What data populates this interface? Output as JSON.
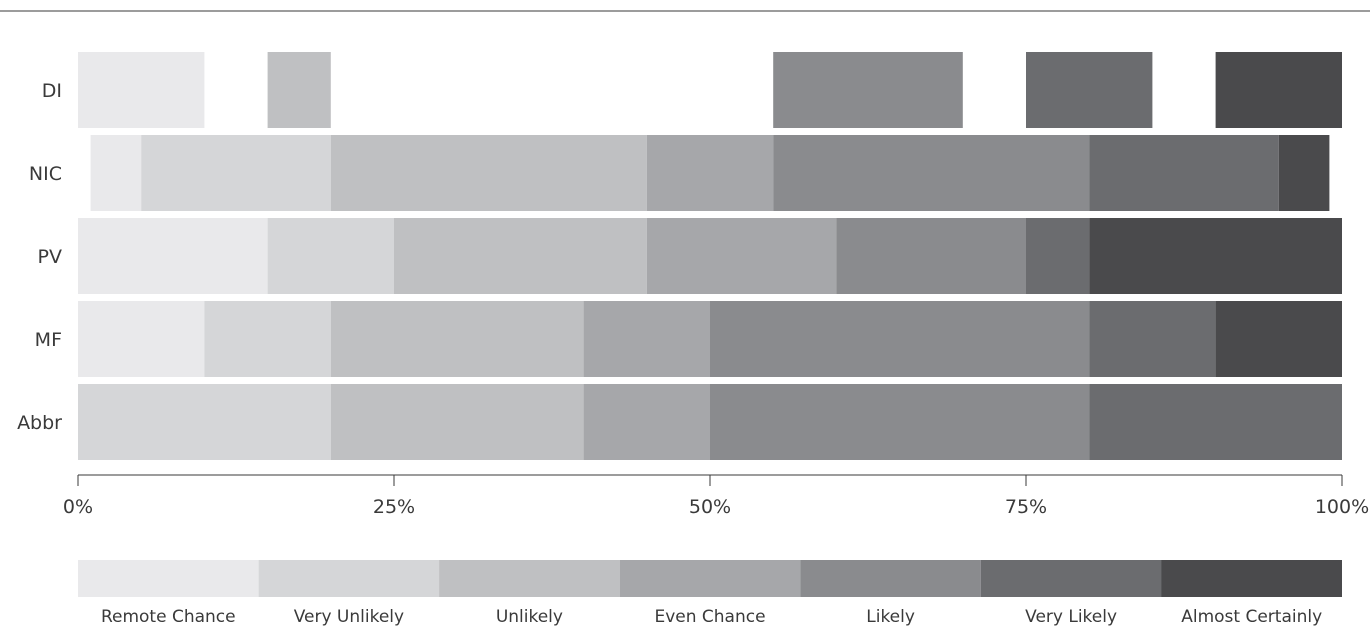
{
  "chart_data": {
    "type": "bar",
    "orientation": "horizontal",
    "stacked": "ranges",
    "title": "",
    "xlabel": "",
    "ylabel": "",
    "xlim": [
      0,
      100
    ],
    "x_ticks": [
      "0%",
      "25%",
      "50%",
      "75%",
      "100%"
    ],
    "x_tick_values": [
      0,
      25,
      50,
      75,
      100
    ],
    "grid": false,
    "legend_position": "bottom",
    "categories": [
      "DI",
      "NIC",
      "PV",
      "MF",
      "Abbr"
    ],
    "levels": [
      {
        "name": "Remote Chance",
        "color": "#e9e9eb"
      },
      {
        "name": "Very Unlikely",
        "color": "#d5d6d8"
      },
      {
        "name": "Unlikely",
        "color": "#bfc0c2"
      },
      {
        "name": "Even Chance",
        "color": "#a6a7aa"
      },
      {
        "name": "Likely",
        "color": "#8a8b8e"
      },
      {
        "name": "Very Likely",
        "color": "#6b6c6f"
      },
      {
        "name": "Almost Certainly",
        "color": "#4a4a4c"
      }
    ],
    "rows": [
      {
        "label": "DI",
        "segments": [
          {
            "level": 0,
            "start": 0,
            "end": 10
          },
          {
            "level": 2,
            "start": 15,
            "end": 20
          },
          {
            "level": 4,
            "start": 55,
            "end": 70
          },
          {
            "level": 5,
            "start": 75,
            "end": 85
          },
          {
            "level": 6,
            "start": 90,
            "end": 100
          }
        ]
      },
      {
        "label": "NIC",
        "segments": [
          {
            "level": 0,
            "start": 1,
            "end": 5
          },
          {
            "level": 1,
            "start": 5,
            "end": 20
          },
          {
            "level": 2,
            "start": 20,
            "end": 45
          },
          {
            "level": 3,
            "start": 45,
            "end": 55
          },
          {
            "level": 4,
            "start": 55,
            "end": 80
          },
          {
            "level": 5,
            "start": 80,
            "end": 95
          },
          {
            "level": 6,
            "start": 95,
            "end": 99
          }
        ]
      },
      {
        "label": "PV",
        "segments": [
          {
            "level": 0,
            "start": 0,
            "end": 15
          },
          {
            "level": 1,
            "start": 15,
            "end": 25
          },
          {
            "level": 2,
            "start": 25,
            "end": 45
          },
          {
            "level": 3,
            "start": 45,
            "end": 60
          },
          {
            "level": 4,
            "start": 60,
            "end": 75
          },
          {
            "level": 5,
            "start": 75,
            "end": 80
          },
          {
            "level": 6,
            "start": 80,
            "end": 100
          }
        ]
      },
      {
        "label": "MF",
        "segments": [
          {
            "level": 0,
            "start": 0,
            "end": 10
          },
          {
            "level": 1,
            "start": 10,
            "end": 20
          },
          {
            "level": 2,
            "start": 20,
            "end": 40
          },
          {
            "level": 3,
            "start": 40,
            "end": 50
          },
          {
            "level": 4,
            "start": 50,
            "end": 80
          },
          {
            "level": 5,
            "start": 80,
            "end": 90
          },
          {
            "level": 6,
            "start": 90,
            "end": 100
          }
        ]
      },
      {
        "label": "Abbr",
        "segments": [
          {
            "level": 1,
            "start": 0,
            "end": 20
          },
          {
            "level": 2,
            "start": 20,
            "end": 40
          },
          {
            "level": 3,
            "start": 40,
            "end": 50
          },
          {
            "level": 4,
            "start": 50,
            "end": 80
          },
          {
            "level": 5,
            "start": 80,
            "end": 100
          }
        ]
      }
    ]
  }
}
